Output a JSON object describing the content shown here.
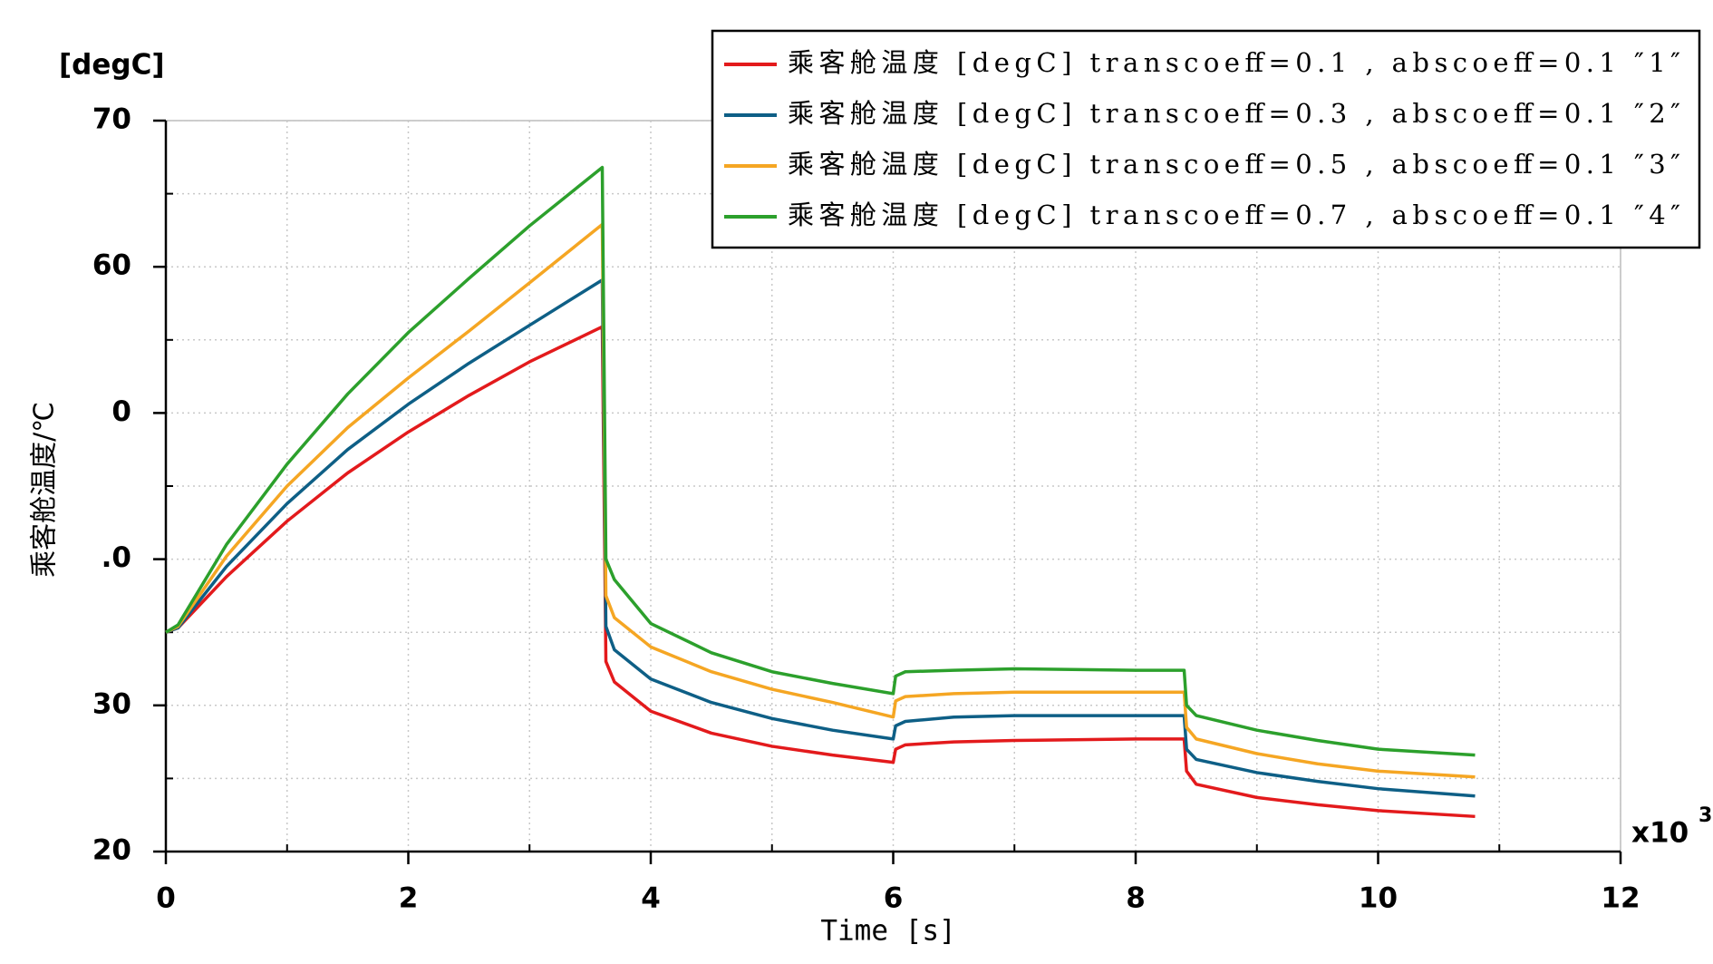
{
  "chart_data": {
    "type": "line",
    "y_unit": "[degC]",
    "y_label": "乘客舱温度/℃",
    "x_label": "Time [s]",
    "x_multiplier": "x10",
    "x_multiplier_exp": "3",
    "xlim": [
      0,
      12
    ],
    "xticks": [
      0,
      2,
      4,
      6,
      8,
      10,
      12
    ],
    "xminorticks": [
      1,
      3,
      5,
      7,
      9,
      11
    ],
    "ylim": [
      20,
      70
    ],
    "yticks": [
      20,
      30,
      {
        "value": 40,
        "label": ".0"
      },
      {
        "value": 50,
        "label": "0"
      },
      60,
      70
    ],
    "yminorticks": [
      25,
      35,
      45,
      55,
      65
    ],
    "grid": true,
    "legend": "top-right",
    "x": [
      0,
      0.1,
      0.5,
      1,
      1.5,
      2,
      2.5,
      3,
      3.6,
      3.63,
      3.7,
      4,
      4.5,
      5,
      5.5,
      6,
      6.02,
      6.1,
      6.5,
      7,
      8,
      8.4,
      8.42,
      8.5,
      9,
      9.5,
      10,
      10.8
    ],
    "series": [
      {
        "name": "乘客舱温度 [degC] transcoeff=0.1 , abscoeff=0.1  ″1″",
        "color": "#e31a1c",
        "values": [
          35,
          35.3,
          38.8,
          42.6,
          45.9,
          48.7,
          51.2,
          53.5,
          55.9,
          33,
          31.6,
          29.6,
          28.1,
          27.2,
          26.6,
          26.1,
          27.0,
          27.3,
          27.5,
          27.6,
          27.7,
          27.7,
          25.5,
          24.6,
          23.7,
          23.2,
          22.8,
          22.4
        ]
      },
      {
        "name": "乘客舱温度 [degC] transcoeff=0.3 , abscoeff=0.1  ″2″",
        "color": "#0e5f86",
        "values": [
          35,
          35.3,
          39.5,
          43.8,
          47.5,
          50.6,
          53.4,
          56.0,
          59.1,
          35.4,
          33.8,
          31.8,
          30.2,
          29.1,
          28.3,
          27.7,
          28.6,
          28.9,
          29.2,
          29.3,
          29.3,
          29.3,
          27.0,
          26.3,
          25.4,
          24.8,
          24.3,
          23.8
        ]
      },
      {
        "name": "乘客舱温度 [degC] transcoeff=0.5 , abscoeff=0.1  ″3″",
        "color": "#f5a623",
        "values": [
          35,
          35.4,
          40.2,
          45.0,
          49.0,
          52.4,
          55.6,
          58.9,
          62.9,
          37.5,
          36.0,
          34.0,
          32.3,
          31.1,
          30.2,
          29.2,
          30.3,
          30.6,
          30.8,
          30.9,
          30.9,
          30.9,
          28.5,
          27.7,
          26.7,
          26.0,
          25.5,
          25.1
        ]
      },
      {
        "name": "乘客舱温度 [degC] transcoeff=0.7 , abscoeff=0.1  ″4″",
        "color": "#2ca02c",
        "values": [
          35,
          35.5,
          41.0,
          46.5,
          51.3,
          55.5,
          59.2,
          62.8,
          66.8,
          40.0,
          38.6,
          35.6,
          33.6,
          32.3,
          31.5,
          30.8,
          32.0,
          32.3,
          32.4,
          32.5,
          32.4,
          32.4,
          30.0,
          29.3,
          28.3,
          27.6,
          27.0,
          26.6
        ]
      }
    ]
  }
}
